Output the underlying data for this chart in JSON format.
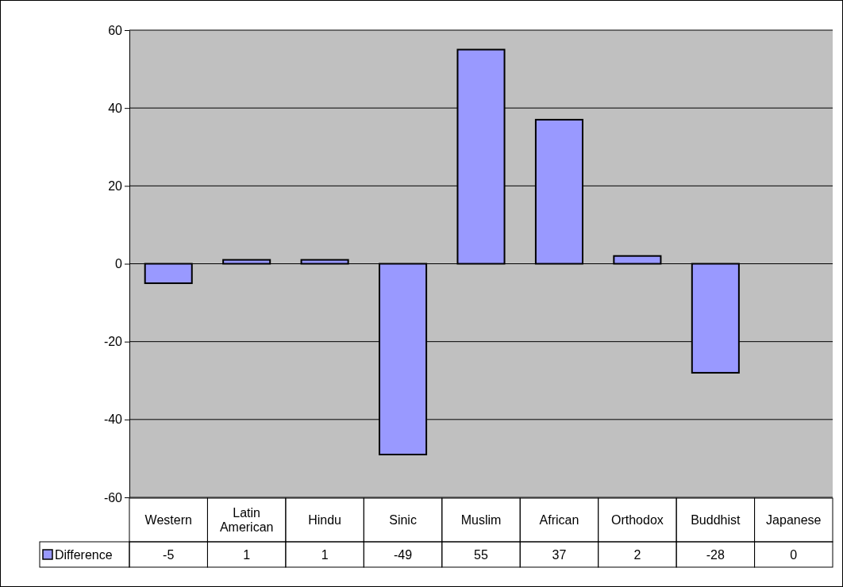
{
  "chart_data": {
    "type": "bar",
    "categories": [
      "Western",
      "Latin\nAmerican",
      "Hindu",
      "Sinic",
      "Muslim",
      "African",
      "Orthodox",
      "Buddhist",
      "Japanese"
    ],
    "series": [
      {
        "name": "Difference",
        "color": "#9999ff",
        "values": [
          -5,
          1,
          1,
          -49,
          55,
          37,
          2,
          -28,
          0
        ]
      }
    ],
    "ylim": [
      -60,
      60
    ],
    "yticks": [
      -60,
      -40,
      -20,
      0,
      20,
      40,
      60
    ],
    "grid": "y",
    "legend": "bottom left",
    "data_labels": true
  }
}
